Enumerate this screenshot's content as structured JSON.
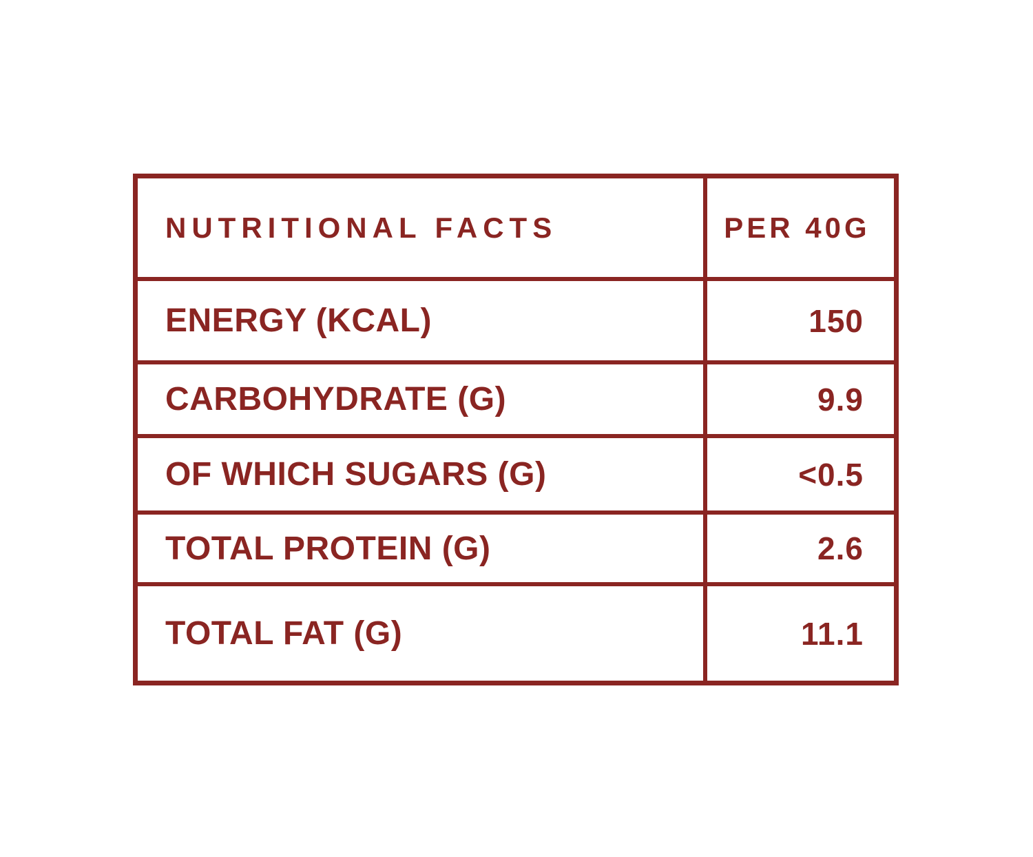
{
  "colors": {
    "accent": "#8a2522",
    "background": "#ffffff"
  },
  "table": {
    "header": {
      "label": "NUTRITIONAL FACTS",
      "value": "PER 40G"
    },
    "rows": [
      {
        "label": "ENERGY (KCAL)",
        "value": "150"
      },
      {
        "label": "CARBOHYDRATE (G)",
        "value": "9.9"
      },
      {
        "label": "OF WHICH SUGARS (G)",
        "value": "<0.5"
      },
      {
        "label": "TOTAL PROTEIN (G)",
        "value": "2.6"
      },
      {
        "label": "TOTAL FAT (G)",
        "value": "11.1"
      }
    ]
  },
  "chart_data": {
    "type": "table",
    "title": "NUTRITIONAL FACTS",
    "columns": [
      "NUTRITIONAL FACTS",
      "PER 40G"
    ],
    "rows": [
      [
        "ENERGY (KCAL)",
        "150"
      ],
      [
        "CARBOHYDRATE (G)",
        "9.9"
      ],
      [
        "OF WHICH SUGARS (G)",
        "<0.5"
      ],
      [
        "TOTAL PROTEIN (G)",
        "2.6"
      ],
      [
        "TOTAL FAT (G)",
        "11.1"
      ]
    ]
  }
}
